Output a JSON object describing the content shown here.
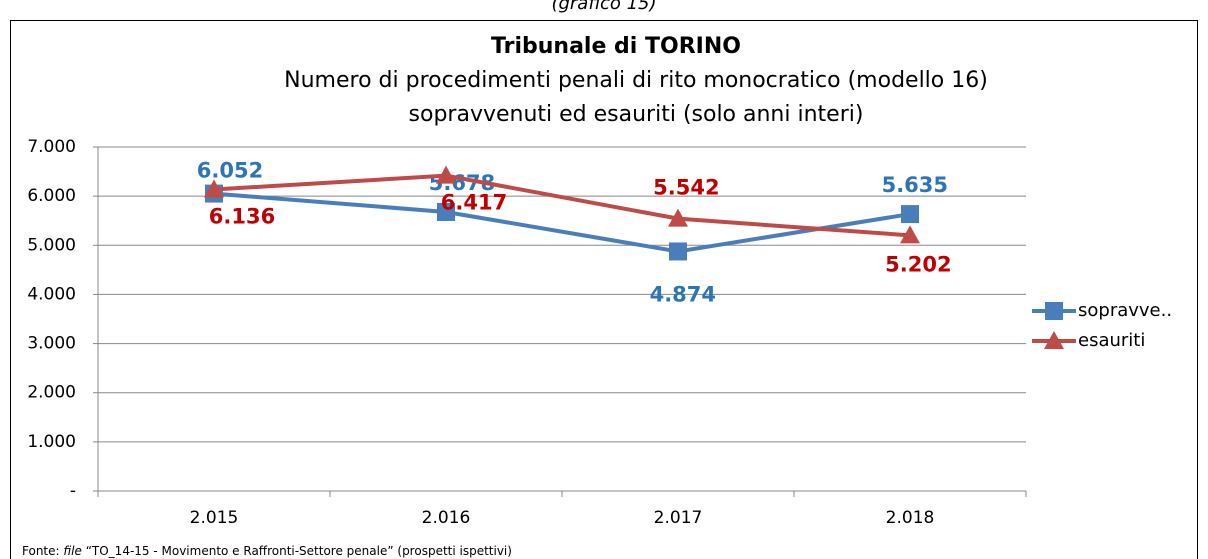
{
  "caption": "(grafico 15)",
  "chart_data": {
    "type": "line",
    "title": "Tribunale di TORINO",
    "subtitle": [
      "Numero di procedimenti penali di rito monocratico (modello 16)",
      "sopravvenuti ed esauriti (solo anni interi)"
    ],
    "categories": [
      "2.015",
      "2.016",
      "2.017",
      "2.018"
    ],
    "series": [
      {
        "name": "sopravve..",
        "color": "#4a7ebb",
        "label_color": "#2e75b6",
        "marker": "square",
        "values": [
          6052,
          5678,
          4874,
          5635
        ],
        "value_labels": [
          "6.052",
          "5.678",
          "4.874",
          "5.635"
        ]
      },
      {
        "name": "esauriti",
        "color": "#be4b48",
        "label_color": "#c00000",
        "marker": "triangle",
        "values": [
          6136,
          6417,
          5542,
          5202
        ],
        "value_labels": [
          "6.136",
          "6.417",
          "5.542",
          "5.202"
        ]
      }
    ],
    "ylim": [
      0,
      7000
    ],
    "yticks": [
      {
        "value": 0,
        "label": "-"
      },
      {
        "value": 1000,
        "label": "1.000"
      },
      {
        "value": 2000,
        "label": "2.000"
      },
      {
        "value": 3000,
        "label": "3.000"
      },
      {
        "value": 4000,
        "label": "4.000"
      },
      {
        "value": 5000,
        "label": "5.000"
      },
      {
        "value": 6000,
        "label": "6.000"
      },
      {
        "value": 7000,
        "label": "7.000"
      }
    ],
    "grid": true,
    "legend": "right"
  },
  "footer": {
    "prefix": "Fonte:",
    "italic": "file",
    "text": "“TO_14-15 - Movimento e Raffronti-Settore penale” (prospetti ispettivi)"
  }
}
